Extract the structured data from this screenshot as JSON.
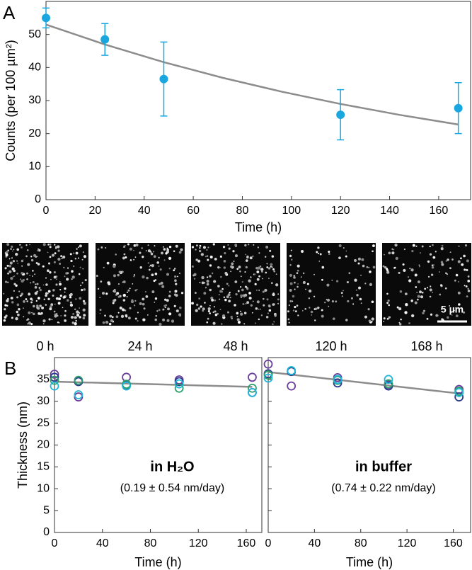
{
  "panels": [
    "A",
    "B"
  ],
  "images": {
    "labels": [
      "0 h",
      "24 h",
      "48 h",
      "120 h",
      "168 h"
    ],
    "scale_bar": "5 µm"
  },
  "chart_data": [
    {
      "type": "scatter",
      "x_label": "Time (h)",
      "y_label": "Counts (per 100 µm²)",
      "x": [
        0,
        24,
        48,
        120,
        168
      ],
      "values": [
        55,
        48.5,
        36.5,
        25.7,
        27.7
      ],
      "errors": [
        3,
        4.8,
        11.2,
        7.6,
        7.7
      ],
      "color": "#1aa7e0",
      "marker": "filled",
      "fit": {
        "x": [
          0,
          24,
          48,
          72,
          96,
          120,
          144,
          168
        ],
        "values": [
          53,
          46.97,
          41.62,
          36.88,
          32.69,
          28.97,
          25.67,
          22.75
        ],
        "color": "#8c8c8c"
      },
      "xlim": [
        0,
        173
      ],
      "ylim": [
        0,
        60
      ],
      "xticks": [
        0,
        20,
        40,
        60,
        80,
        100,
        120,
        140,
        160
      ],
      "yticks": [
        0,
        10,
        20,
        30,
        40,
        50
      ]
    },
    {
      "type": "scatter",
      "x_label": "Time (h)",
      "y_label": "Thickness (nm)",
      "annotation": "in H₂O",
      "rate": "(0.19 ± 0.54 nm/day)",
      "x": [
        0,
        20,
        60,
        104,
        165
      ],
      "marker": "open",
      "series": [
        {
          "color": "#6a3d9a",
          "values": [
            36.2,
            31.0,
            35.5,
            34.9,
            35.5
          ]
        },
        {
          "color": "#2b3a8c",
          "values": [
            35.5,
            34.5,
            33.8,
            34.5,
            32.0
          ]
        },
        {
          "color": "#2aa06a",
          "values": [
            34.8,
            34.8,
            33.9,
            33.0,
            33.0
          ]
        },
        {
          "color": "#1fb6dc",
          "values": [
            33.5,
            31.5,
            33.5,
            34.0,
            32.0
          ]
        }
      ],
      "fit": {
        "x": [
          0,
          165
        ],
        "values": [
          34.5,
          33.3
        ],
        "color": "#8c8c8c"
      },
      "xlim": [
        0,
        173
      ],
      "ylim": [
        0,
        40
      ],
      "xticks": [
        0,
        40,
        80,
        120,
        160
      ],
      "yticks": [
        0,
        5,
        10,
        15,
        20,
        25,
        30,
        35
      ]
    },
    {
      "type": "scatter",
      "x_label": "Time (h)",
      "annotation": "in buffer",
      "rate": "(0.74 ± 0.22 nm/day)",
      "x": [
        0,
        20,
        60,
        104,
        165
      ],
      "marker": "open",
      "series": [
        {
          "color": "#6a3d9a",
          "values": [
            38.5,
            33.5,
            35.4,
            33.8,
            32.7
          ]
        },
        {
          "color": "#2b3a8c",
          "values": [
            36.3,
            36.8,
            34.2,
            33.5,
            31.0
          ]
        },
        {
          "color": "#2aa06a",
          "values": [
            36.0,
            37.0,
            34.8,
            34.0,
            32.3
          ]
        },
        {
          "color": "#1fb6dc",
          "values": [
            35.3,
            37.0,
            35.0,
            35.0,
            32.0
          ]
        }
      ],
      "fit": {
        "x": [
          0,
          165
        ],
        "values": [
          36.7,
          31.8
        ],
        "color": "#8c8c8c"
      },
      "xlim": [
        0,
        175
      ],
      "ylim": [
        0,
        40
      ],
      "xticks": [
        0,
        40,
        80,
        120,
        160
      ],
      "yticks": [
        0,
        5,
        10,
        15,
        20,
        25,
        30,
        35
      ],
      "ytick_labels": false
    }
  ]
}
